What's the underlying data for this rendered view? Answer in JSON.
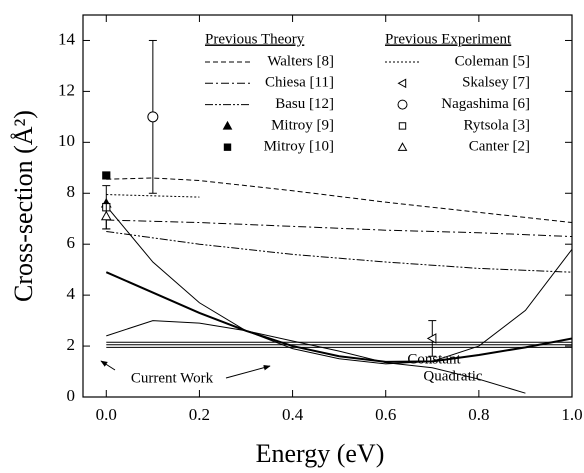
{
  "chart_data": {
    "type": "line",
    "x_label": "Energy (eV)",
    "y_label": "Cross-section (Å²)",
    "xlim": [
      -0.05,
      1.0
    ],
    "ylim": [
      0,
      15
    ],
    "xticks": [
      {
        "value": 0,
        "label": "0.0"
      },
      0.2,
      0.4,
      0.6,
      0.8,
      {
        "value": 1,
        "label": "1.0"
      }
    ],
    "yticks": [
      0,
      2,
      4,
      6,
      8,
      10,
      12,
      14
    ],
    "color": "#000000",
    "groups": [
      {
        "title": "Previous Theory",
        "series": [
          {
            "name": "Walters [8]",
            "kind": "line",
            "dash": "5,3",
            "x": [
              0,
              0.1,
              0.2,
              0.4,
              0.6,
              0.8,
              1.0
            ],
            "values": [
              8.55,
              8.6,
              8.5,
              8.1,
              7.65,
              7.25,
              6.85
            ]
          },
          {
            "name": "Chiesa [11]",
            "kind": "line",
            "dash": "8,3,2,3",
            "x": [
              0,
              0.2,
              0.4,
              0.6,
              0.8,
              1.0
            ],
            "values": [
              6.95,
              6.85,
              6.7,
              6.55,
              6.45,
              6.3
            ]
          },
          {
            "name": "Basu [12]",
            "kind": "line",
            "dash": "8,2,2,2,2,2",
            "x": [
              0,
              0.2,
              0.4,
              0.6,
              0.8,
              1.0
            ],
            "values": [
              6.5,
              6.0,
              5.6,
              5.3,
              5.05,
              4.9
            ]
          },
          {
            "name": "Mitroy [9]",
            "kind": "marker",
            "marker": "triangle",
            "filled": true,
            "x": [
              0
            ],
            "values": [
              7.6
            ]
          },
          {
            "name": "Mitroy [10]",
            "kind": "marker",
            "marker": "square",
            "filled": true,
            "x": [
              0
            ],
            "values": [
              8.7
            ]
          }
        ]
      },
      {
        "title": "Previous Experiment",
        "series": [
          {
            "name": "Coleman [5]",
            "kind": "line",
            "dash": "2,2",
            "x": [
              0,
              0.2
            ],
            "values": [
              7.95,
              7.85
            ]
          },
          {
            "name": "Skalsey [7]",
            "kind": "marker",
            "marker": "left-triangle",
            "filled": false,
            "x": [
              0.7
            ],
            "values": [
              2.3
            ],
            "errors": [
              0.7
            ]
          },
          {
            "name": "Nagashima [6]",
            "kind": "marker",
            "marker": "circle",
            "filled": false,
            "x": [
              0.1
            ],
            "values": [
              11.0
            ],
            "errors": [
              3.0
            ]
          },
          {
            "name": "Rytsola  [3]",
            "kind": "marker",
            "marker": "square",
            "filled": false,
            "x": [
              0
            ],
            "values": [
              7.45
            ],
            "errors": [
              0.85
            ]
          },
          {
            "name": "Canter [2]",
            "kind": "marker",
            "marker": "triangle",
            "filled": false,
            "x": [
              0
            ],
            "values": [
              7.1
            ],
            "errors": [
              0.5
            ]
          }
        ]
      }
    ],
    "current_work": [
      {
        "width": 1,
        "x": [
          0,
          0.1,
          0.2,
          0.3,
          0.4,
          0.5,
          0.6,
          0.7,
          0.8,
          0.9,
          1.0
        ],
        "values": [
          7.5,
          5.3,
          3.7,
          2.6,
          1.9,
          1.5,
          1.3,
          1.4,
          2.0,
          3.4,
          5.8
        ]
      },
      {
        "width": 2,
        "x": [
          0,
          0.1,
          0.2,
          0.3,
          0.4,
          0.5,
          0.6,
          0.7,
          0.8,
          0.9,
          1.0
        ],
        "values": [
          4.9,
          4.1,
          3.3,
          2.6,
          2.0,
          1.6,
          1.38,
          1.4,
          1.65,
          1.95,
          2.3
        ]
      },
      {
        "width": 1,
        "x": [
          0,
          0.1,
          0.2,
          0.3,
          0.4,
          0.5,
          0.6,
          0.7,
          0.8,
          0.9
        ],
        "values": [
          2.4,
          3.0,
          2.9,
          2.6,
          2.2,
          1.8,
          1.35,
          1.15,
          0.7,
          0.15
        ]
      },
      {
        "width": 1,
        "x": [
          0,
          1.0
        ],
        "values": [
          2.15,
          2.15
        ]
      },
      {
        "width": 1,
        "x": [
          0,
          1.0
        ],
        "values": [
          2.05,
          2.05
        ]
      },
      {
        "width": 1,
        "x": [
          0,
          1.0
        ],
        "values": [
          1.95,
          1.95
        ]
      }
    ],
    "annotations": [
      "Constant",
      "Quadratic",
      "Current Work"
    ]
  }
}
